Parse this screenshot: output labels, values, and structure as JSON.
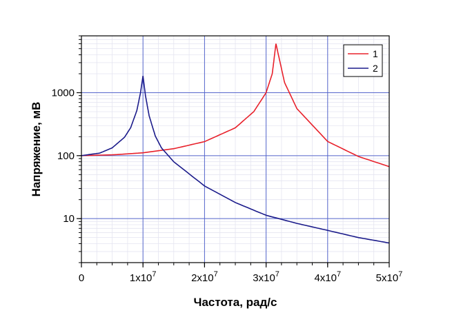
{
  "chart_data": {
    "type": "line",
    "xlabel": "Частота, рад/с",
    "ylabel": "Напряжение, мВ",
    "xlim": [
      0,
      50000000
    ],
    "ylim": [
      2,
      8000
    ],
    "y_scale": "log",
    "grid": true,
    "legend_position": "top-right",
    "x_ticks": [
      {
        "value": 0,
        "base": "0",
        "exp": ""
      },
      {
        "value": 10000000,
        "base": "1x10",
        "exp": "7"
      },
      {
        "value": 20000000,
        "base": "2x10",
        "exp": "7"
      },
      {
        "value": 30000000,
        "base": "3x10",
        "exp": "7"
      },
      {
        "value": 40000000,
        "base": "4x10",
        "exp": "7"
      },
      {
        "value": 50000000,
        "base": "5x10",
        "exp": "7"
      }
    ],
    "y_ticks": [
      {
        "value": 10,
        "label": "10"
      },
      {
        "value": 100,
        "label": "100"
      },
      {
        "value": 1000,
        "label": "1000"
      }
    ],
    "series": [
      {
        "name": "1",
        "color": "#e8202a",
        "x": [
          0,
          5000000,
          10000000,
          15000000,
          20000000,
          25000000,
          28000000,
          30000000,
          31000000,
          31600000,
          32000000,
          33000000,
          35000000,
          40000000,
          45000000,
          50000000
        ],
        "y": [
          100,
          103,
          111,
          129,
          167,
          277,
          500,
          1000,
          2000,
          6000,
          4000,
          1450,
          560,
          168,
          97,
          67
        ]
      },
      {
        "name": "2",
        "color": "#1a1a8a",
        "x": [
          0,
          3000000,
          5000000,
          7000000,
          8000000,
          9000000,
          9600000,
          10000000,
          10400000,
          11000000,
          12000000,
          13000000,
          15000000,
          20000000,
          25000000,
          30000000,
          35000000,
          40000000,
          45000000,
          50000000
        ],
        "y": [
          100,
          110,
          133,
          196,
          278,
          520,
          1000,
          1850,
          900,
          430,
          205,
          133,
          80,
          33,
          18,
          11.3,
          8.4,
          6.5,
          5.0,
          4.1
        ]
      }
    ]
  }
}
